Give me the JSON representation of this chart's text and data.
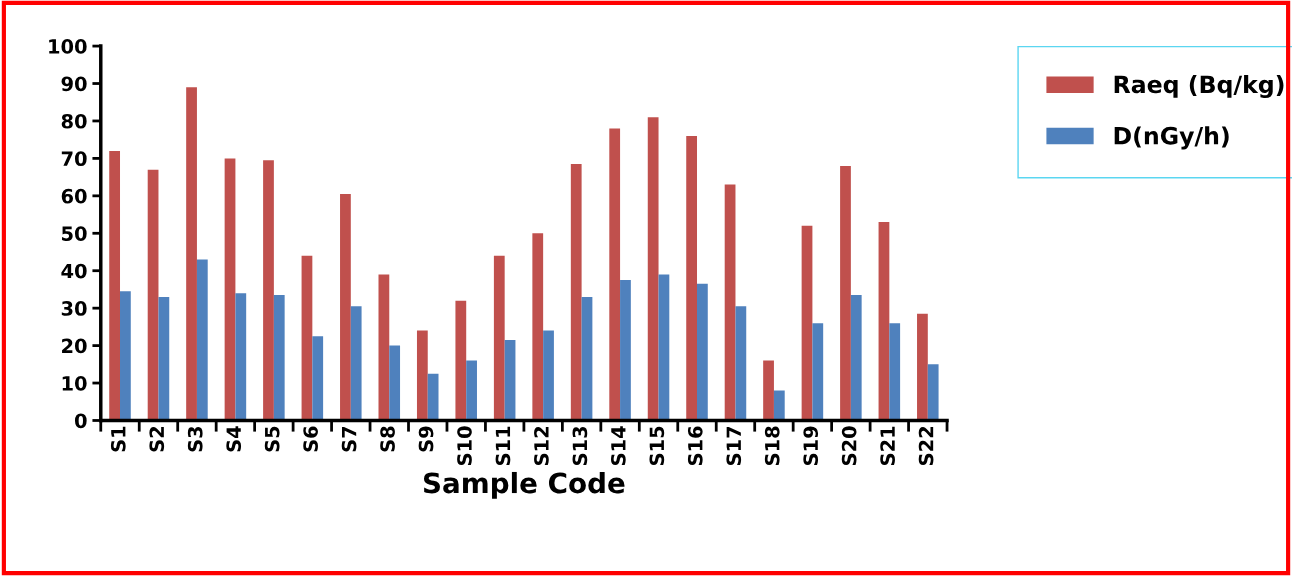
{
  "chart_data": {
    "type": "bar",
    "xlabel": "Sample Code",
    "categories": [
      "S1",
      "S2",
      "S3",
      "S4",
      "S5",
      "S6",
      "S7",
      "S8",
      "S9",
      "S10",
      "S11",
      "S12",
      "S13",
      "S14",
      "S15",
      "S16",
      "S17",
      "S18",
      "S19",
      "S20",
      "S21",
      "S22"
    ],
    "series": [
      {
        "name": "Raeq (Bq/kg)",
        "color": "#c0504d",
        "values": [
          72,
          67,
          89,
          70,
          69.5,
          44,
          60.5,
          39,
          24,
          32,
          44,
          50,
          68.5,
          78,
          81,
          76,
          63,
          16,
          52,
          68,
          53,
          28.5
        ]
      },
      {
        "name": "D(nGy/h)",
        "color": "#4f81bd",
        "values": [
          34.5,
          33,
          43,
          34,
          33.5,
          22.5,
          30.5,
          20,
          12.5,
          16,
          21.5,
          24,
          33,
          37.5,
          39,
          36.5,
          30.5,
          8,
          26,
          33.5,
          26,
          15
        ]
      }
    ],
    "ylim": [
      0,
      100
    ],
    "yticks": [
      0,
      10,
      20,
      30,
      40,
      50,
      60,
      70,
      80,
      90,
      100
    ],
    "grid": false,
    "legend": "top right"
  }
}
